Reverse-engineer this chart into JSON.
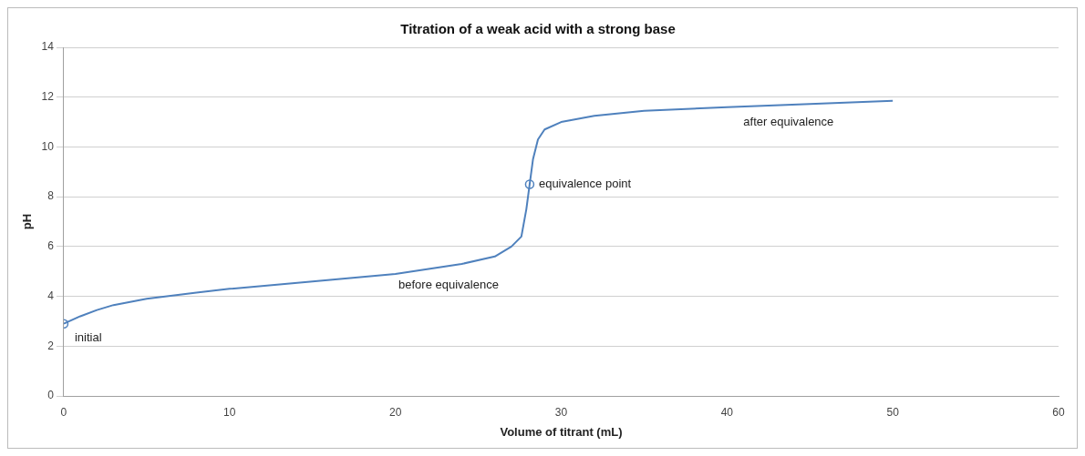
{
  "chart_data": {
    "type": "line",
    "title": "Titration of a weak acid with a strong base",
    "xlabel": "Volume of titrant (mL)",
    "ylabel": "pH",
    "xlim": [
      0,
      60
    ],
    "xticks": [
      0,
      10,
      20,
      30,
      40,
      50,
      60
    ],
    "ylim": [
      0,
      14
    ],
    "yticks": [
      0,
      2,
      4,
      6,
      8,
      10,
      12,
      14
    ],
    "grid": "y",
    "legend": false,
    "marker": "none",
    "line_style": "solid",
    "series": [
      {
        "color": "#4f81bd",
        "x": [
          0,
          1,
          2,
          3,
          5,
          8,
          10,
          15,
          20,
          22,
          24,
          26,
          27,
          27.6,
          27.9,
          28.1,
          28.3,
          28.6,
          29,
          30,
          32,
          35,
          40,
          45,
          50
        ],
        "values": [
          2.9,
          3.2,
          3.45,
          3.65,
          3.9,
          4.15,
          4.3,
          4.6,
          4.9,
          5.1,
          5.3,
          5.6,
          6.0,
          6.4,
          7.5,
          8.5,
          9.5,
          10.3,
          10.7,
          11.0,
          11.25,
          11.45,
          11.6,
          11.72,
          11.85
        ]
      },
      {
        "type": "scatter",
        "color": "#4f81bd",
        "marker": "circle",
        "x": [
          0,
          28.1
        ],
        "values": [
          2.9,
          8.5
        ]
      }
    ],
    "annotations": [
      {
        "text": "initial",
        "x": 0,
        "y": 2.9
      },
      {
        "text": "equivalence point",
        "x": 28.1,
        "y": 8.5
      },
      {
        "text": "before equivalence",
        "x": 22,
        "y": 5.1
      },
      {
        "text": "after equivalence",
        "x": 40,
        "y": 11.6
      }
    ]
  }
}
